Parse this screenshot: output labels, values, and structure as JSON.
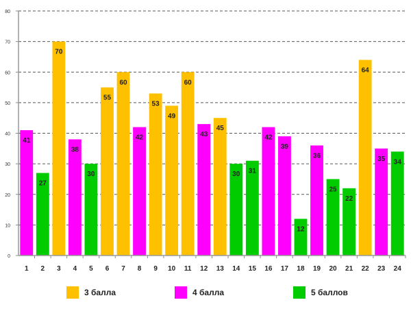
{
  "chart_data": {
    "type": "bar",
    "title": "",
    "xlabel": "",
    "ylabel": "",
    "ylim": [
      0,
      80
    ],
    "yticks": [
      0,
      10,
      20,
      30,
      40,
      50,
      60,
      70,
      80
    ],
    "grid": true,
    "legend_position": "bottom",
    "categories": [
      "1",
      "2",
      "3",
      "4",
      "5",
      "6",
      "7",
      "8",
      "9",
      "10",
      "11",
      "12",
      "13",
      "14",
      "15",
      "16",
      "17",
      "18",
      "19",
      "20",
      "21",
      "22",
      "23",
      "24"
    ],
    "values": [
      41,
      27,
      70,
      38,
      30,
      55,
      60,
      42,
      53,
      49,
      60,
      43,
      45,
      30,
      31,
      42,
      39,
      12,
      36,
      25,
      22,
      64,
      35,
      34
    ],
    "series_index": [
      1,
      2,
      0,
      1,
      2,
      0,
      0,
      1,
      0,
      0,
      0,
      1,
      0,
      2,
      2,
      1,
      1,
      2,
      1,
      2,
      2,
      0,
      1,
      2
    ],
    "series": [
      {
        "name": "3 балла",
        "color": "#FFC000"
      },
      {
        "name": "4 балла",
        "color": "#FF00FF"
      },
      {
        "name": "5 баллов",
        "color": "#00CC00"
      }
    ]
  }
}
